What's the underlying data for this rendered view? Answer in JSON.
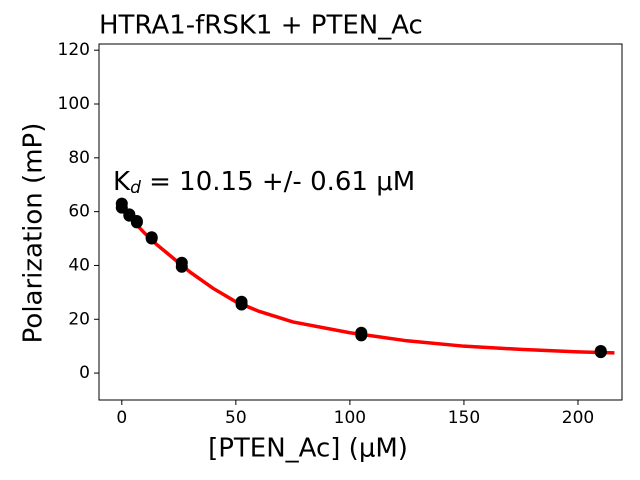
{
  "chart_data": {
    "type": "scatter",
    "title": "HTRA1-fRSK1 + PTEN_Ac",
    "x_label": "[PTEN_Ac] (μM)",
    "y_label": "Polarization (mP)",
    "annotation": {
      "main": "K",
      "sub": "d",
      "rest": " = 10.15 +/- 0.61 μM"
    },
    "xlim": [
      -10,
      219.3
    ],
    "ylim": [
      -10,
      122.3
    ],
    "xticks": [
      0,
      50,
      100,
      150,
      200
    ],
    "yticks": [
      0,
      20,
      40,
      60,
      80,
      100,
      120
    ],
    "points": {
      "color": "#000000",
      "x": [
        0,
        0,
        3.3,
        3.3,
        6.6,
        6.6,
        13.1,
        13.1,
        26.3,
        26.3,
        52.5,
        52.5,
        105,
        105,
        210,
        210
      ],
      "values": [
        63,
        61.5,
        59,
        58.5,
        56.5,
        56,
        50.5,
        50,
        41,
        39.5,
        26.5,
        25.5,
        15,
        14,
        8.2,
        7.8
      ]
    },
    "fit": {
      "color": "#ff0000",
      "x": [
        0,
        5,
        10,
        15,
        20,
        30,
        40,
        50,
        60,
        75,
        100,
        125,
        150,
        175,
        200,
        216
      ],
      "values": [
        62,
        56.5,
        52,
        48,
        44.5,
        37.5,
        31.5,
        26.5,
        23,
        19,
        15,
        12,
        10,
        8.8,
        7.9,
        7.5
      ]
    }
  }
}
